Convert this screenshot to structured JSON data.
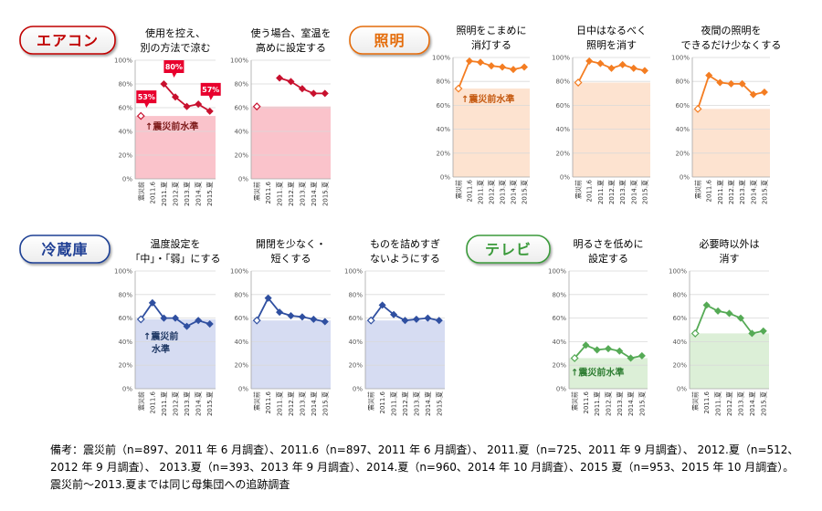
{
  "appliances": [
    {
      "label": "エアコン",
      "colors": {
        "badge": "#c00000",
        "line": "#c8102e",
        "band": "#fac3cb",
        "note": "#7f1d1d",
        "callout": "#e8002d"
      }
    },
    {
      "label": "照明",
      "colors": {
        "badge": "#e46c0a",
        "line": "#f47d22",
        "band": "#fde3d0",
        "note": "#c55a11"
      }
    },
    {
      "label": "冷蔵庫",
      "colors": {
        "badge": "#1f3f94",
        "line": "#2f4fa0",
        "band": "#d6dcf2",
        "note": "#1f3864"
      }
    },
    {
      "label": "テレビ",
      "colors": {
        "badge": "#3a9a3a",
        "line": "#55aa55",
        "band": "#dcefd7",
        "note": "#2e7d32"
      }
    }
  ],
  "chart_data": [
    {
      "type": "line",
      "appliance": "エアコン",
      "title": [
        "使用を控え、",
        "別の方法で涼む"
      ],
      "categories": [
        "震災前",
        "2011.6",
        "2011.夏",
        "2012.夏",
        "2013.夏",
        "2014.夏",
        "2015.夏"
      ],
      "values": [
        53,
        null,
        80,
        69,
        61,
        63,
        57
      ],
      "ylim": [
        0,
        100
      ],
      "yticks": [
        0,
        20,
        40,
        60,
        80,
        100
      ],
      "ytick_labels": [
        "0%",
        "20%",
        "40%",
        "60%",
        "80%",
        "100%"
      ],
      "baseline_label": [
        "↑震災前水準"
      ],
      "data_labels": [
        {
          "category": "震災前",
          "text": "53%"
        },
        {
          "category": "2011.夏",
          "text": "80%"
        },
        {
          "category": "2015.夏",
          "text": "57%"
        }
      ]
    },
    {
      "type": "line",
      "appliance": "エアコン",
      "title": [
        "使う場合、室温を",
        "高めに設定する"
      ],
      "categories": [
        "震災前",
        "2011.6",
        "2011.夏",
        "2012.夏",
        "2013.夏",
        "2014.夏",
        "2015.夏"
      ],
      "values": [
        61,
        null,
        85,
        82,
        76,
        72,
        72
      ],
      "ylim": [
        0,
        100
      ],
      "yticks": [
        0,
        20,
        40,
        60,
        80,
        100
      ],
      "ytick_labels": [
        "0%",
        "20%",
        "40%",
        "60%",
        "80%",
        "100%"
      ]
    },
    {
      "type": "line",
      "appliance": "照明",
      "title": [
        "照明をこまめに",
        "消灯する"
      ],
      "categories": [
        "震災前",
        "2011.6",
        "2011.夏",
        "2012.夏",
        "2013.夏",
        "2014.夏",
        "2015.夏"
      ],
      "values": [
        74,
        97,
        96,
        93,
        92,
        90,
        92
      ],
      "ylim": [
        0,
        100
      ],
      "yticks": [
        0,
        20,
        40,
        60,
        80,
        100
      ],
      "ytick_labels": [
        "0%",
        "20%",
        "40%",
        "60%",
        "80%",
        "100%"
      ],
      "baseline_label": [
        "↑震災前水準"
      ]
    },
    {
      "type": "line",
      "appliance": "照明",
      "title": [
        "日中はなるべく",
        "照明を消す"
      ],
      "categories": [
        "震災前",
        "2011.6",
        "2011.夏",
        "2012.夏",
        "2013.夏",
        "2014.夏",
        "2015.夏"
      ],
      "values": [
        79,
        97,
        95,
        91,
        94,
        91,
        89
      ],
      "ylim": [
        0,
        100
      ],
      "yticks": [
        0,
        20,
        40,
        60,
        80,
        100
      ],
      "ytick_labels": [
        "0%",
        "20%",
        "40%",
        "60%",
        "80%",
        "100%"
      ]
    },
    {
      "type": "line",
      "appliance": "照明",
      "title": [
        "夜間の照明を",
        "できるだけ少なくする"
      ],
      "categories": [
        "震災前",
        "2011.6",
        "2011.夏",
        "2012.夏",
        "2013.夏",
        "2014.夏",
        "2015.夏"
      ],
      "values": [
        57,
        85,
        79,
        78,
        78,
        69,
        71
      ],
      "ylim": [
        0,
        100
      ],
      "yticks": [
        0,
        20,
        40,
        60,
        80,
        100
      ],
      "ytick_labels": [
        "0%",
        "20%",
        "40%",
        "60%",
        "80%",
        "100%"
      ]
    },
    {
      "type": "line",
      "appliance": "冷蔵庫",
      "title": [
        "温度設定を",
        "「中」・「弱」にする"
      ],
      "categories": [
        "震災前",
        "2011.6",
        "2011.夏",
        "2012.夏",
        "2013.夏",
        "2014.夏",
        "2015.夏"
      ],
      "values": [
        59,
        73,
        60,
        60,
        53,
        58,
        55
      ],
      "ylim": [
        0,
        100
      ],
      "yticks": [
        0,
        20,
        40,
        60,
        80,
        100
      ],
      "ytick_labels": [
        "0%",
        "20%",
        "40%",
        "60%",
        "80%",
        "100%"
      ],
      "baseline_label": [
        "↑震災前",
        "水準"
      ]
    },
    {
      "type": "line",
      "appliance": "冷蔵庫",
      "title": [
        "開閉を少なく・",
        "短くする"
      ],
      "categories": [
        "震災前",
        "2011.6",
        "2011.夏",
        "2012.夏",
        "2013.夏",
        "2014.夏",
        "2015.夏"
      ],
      "values": [
        58,
        77,
        65,
        62,
        61,
        59,
        57
      ],
      "ylim": [
        0,
        100
      ],
      "yticks": [
        0,
        20,
        40,
        60,
        80,
        100
      ],
      "ytick_labels": [
        "0%",
        "20%",
        "40%",
        "60%",
        "80%",
        "100%"
      ]
    },
    {
      "type": "line",
      "appliance": "冷蔵庫",
      "title": [
        "ものを詰めすぎ",
        "ないようにする"
      ],
      "categories": [
        "震災前",
        "2011.6",
        "2011.夏",
        "2012.夏",
        "2013.夏",
        "2014.夏",
        "2015.夏"
      ],
      "values": [
        58,
        71,
        63,
        58,
        59,
        60,
        58
      ],
      "ylim": [
        0,
        100
      ],
      "yticks": [
        0,
        20,
        40,
        60,
        80,
        100
      ],
      "ytick_labels": [
        "0%",
        "20%",
        "40%",
        "60%",
        "80%",
        "100%"
      ]
    },
    {
      "type": "line",
      "appliance": "テレビ",
      "title": [
        "明るさを低めに",
        "設定する"
      ],
      "categories": [
        "震災前",
        "2011.6",
        "2011.夏",
        "2012.夏",
        "2013.夏",
        "2014.夏",
        "2015.夏"
      ],
      "values": [
        26,
        37,
        33,
        34,
        32,
        26,
        28
      ],
      "ylim": [
        0,
        100
      ],
      "yticks": [
        0,
        20,
        40,
        60,
        80,
        100
      ],
      "ytick_labels": [
        "0%",
        "20%",
        "40%",
        "60%",
        "80%",
        "100%"
      ],
      "baseline_label": [
        "↑震災前水準"
      ]
    },
    {
      "type": "line",
      "appliance": "テレビ",
      "title": [
        "必要時以外は",
        "消す"
      ],
      "categories": [
        "震災前",
        "2011.6",
        "2011.夏",
        "2012.夏",
        "2013.夏",
        "2014.夏",
        "2015.夏"
      ],
      "values": [
        47,
        71,
        66,
        64,
        60,
        47,
        49
      ],
      "ylim": [
        0,
        100
      ],
      "yticks": [
        0,
        20,
        40,
        60,
        80,
        100
      ],
      "ytick_labels": [
        "0%",
        "20%",
        "40%",
        "60%",
        "80%",
        "100%"
      ]
    }
  ],
  "footnote": [
    "備考：震災前（n=897、2011 年 6 月調査）、2011.6（n=897、2011 年 6 月調査）、 2011.夏（n=725、2011 年 9 月調査）、 2012.夏（n=512、",
    "2012 年 9 月調査）、 2013.夏（n=393、2013 年 9 月調査）、2014.夏（n=960、2014 年 10 月調査）、2015 夏（n=953、2015 年 10 月調査）。",
    "震災前～2013.夏までは同じ母集団への追跡調査"
  ]
}
